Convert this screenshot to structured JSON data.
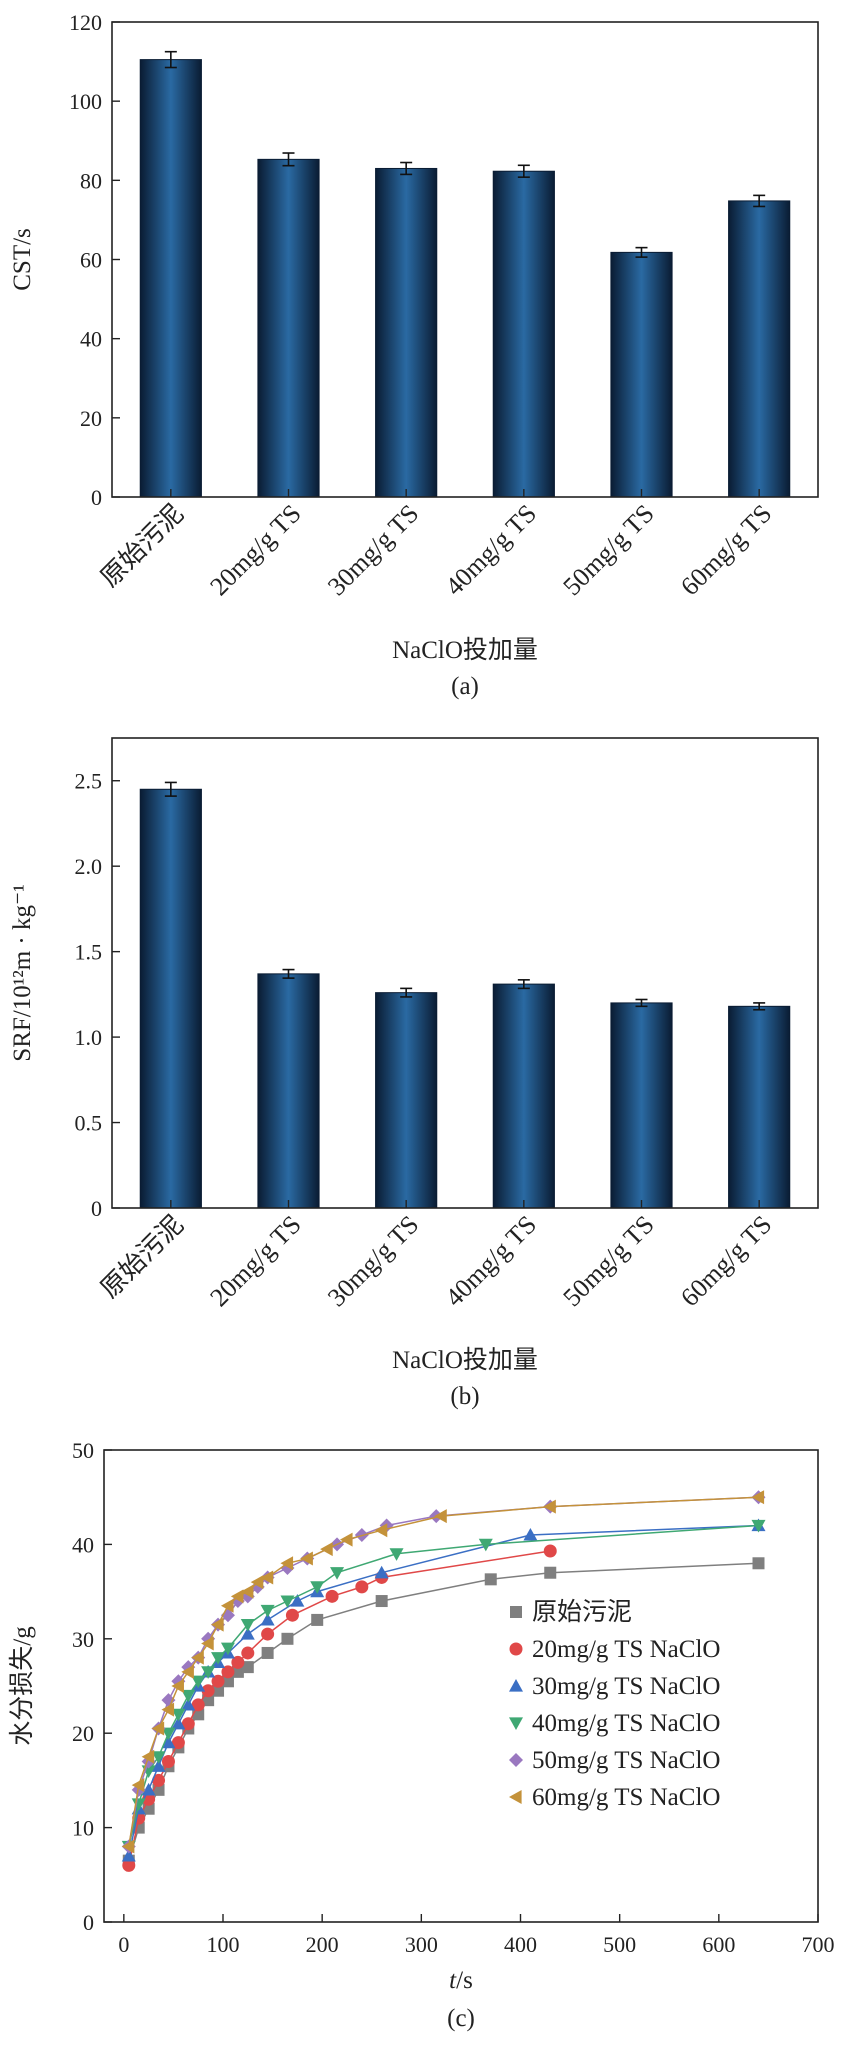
{
  "chart_data": [
    {
      "panel": "(a)",
      "type": "bar",
      "categories": [
        "原始污泥",
        "20mg/g TS",
        "30mg/g TS",
        "40mg/g TS",
        "50mg/g TS",
        "60mg/g TS"
      ],
      "values": [
        110.5,
        85.3,
        83.0,
        82.3,
        61.8,
        74.8
      ],
      "errors": [
        2.0,
        1.6,
        1.5,
        1.5,
        1.2,
        1.4
      ],
      "xlabel": "NaClO投加量",
      "ylabel": "CST/s",
      "ylim": [
        0,
        120
      ],
      "yticks": [
        0,
        20,
        40,
        60,
        80,
        100,
        120
      ],
      "bar_color": "#2a6aa3"
    },
    {
      "panel": "(b)",
      "type": "bar",
      "categories": [
        "原始污泥",
        "20mg/g TS",
        "30mg/g TS",
        "40mg/g TS",
        "50mg/g TS",
        "60mg/g TS"
      ],
      "values": [
        2.45,
        1.37,
        1.26,
        1.31,
        1.2,
        1.18
      ],
      "errors": [
        0.04,
        0.025,
        0.025,
        0.025,
        0.02,
        0.02
      ],
      "xlabel": "NaClO投加量",
      "ylabel": "SRF/10¹²m · kg⁻¹",
      "ylim": [
        0,
        2.75
      ],
      "yticks": [
        "0",
        "0.5",
        "1.0",
        "1.5",
        "2.0",
        "2.5"
      ],
      "bar_color": "#2a6aa3"
    },
    {
      "panel": "(c)",
      "type": "scatter",
      "xlabel": "t/s",
      "ylabel": "水分损失/g",
      "xlim": [
        -20,
        700
      ],
      "ylim": [
        0,
        50
      ],
      "xticks": [
        0,
        100,
        200,
        300,
        400,
        500,
        600,
        700
      ],
      "yticks": [
        0,
        10,
        20,
        30,
        40,
        50
      ],
      "legend_position": "center-right",
      "series": [
        {
          "name": "原始污泥",
          "marker": "square",
          "color": "#7f7f7f",
          "x": [
            5,
            15,
            25,
            35,
            45,
            55,
            65,
            75,
            85,
            95,
            105,
            115,
            125,
            145,
            165,
            195,
            260,
            370,
            430,
            640
          ],
          "y": [
            6.5,
            10,
            12,
            14,
            16.5,
            18.5,
            20.5,
            22,
            23.5,
            24.5,
            25.5,
            26.5,
            27,
            28.5,
            30,
            32,
            34,
            36.3,
            37,
            38
          ]
        },
        {
          "name": "20mg/g TS NaClO",
          "marker": "circle",
          "color": "#e04848",
          "x": [
            5,
            15,
            25,
            35,
            45,
            55,
            65,
            75,
            85,
            95,
            105,
            115,
            125,
            145,
            170,
            210,
            240,
            260,
            430
          ],
          "y": [
            6,
            11,
            13,
            15,
            17,
            19,
            21,
            23,
            24.5,
            25.5,
            26.5,
            27.5,
            28.5,
            30.5,
            32.5,
            34.5,
            35.5,
            36.5,
            39.3
          ]
        },
        {
          "name": "30mg/g TS NaClO",
          "marker": "triangle-up",
          "color": "#3b6fc4",
          "x": [
            5,
            15,
            25,
            35,
            45,
            55,
            65,
            75,
            85,
            95,
            105,
            125,
            145,
            175,
            195,
            260,
            410,
            640
          ],
          "y": [
            7,
            12,
            14,
            16.5,
            19,
            21,
            23,
            25,
            26.5,
            27.5,
            28.5,
            30.5,
            32,
            34,
            35,
            37,
            41,
            42
          ]
        },
        {
          "name": "40mg/g TS NaClO",
          "marker": "triangle-down",
          "color": "#3fa873",
          "x": [
            5,
            15,
            25,
            35,
            45,
            55,
            65,
            75,
            85,
            95,
            105,
            125,
            145,
            165,
            195,
            215,
            275,
            365,
            640
          ],
          "y": [
            8,
            12.5,
            16,
            17.5,
            20,
            22,
            24,
            25.5,
            26.5,
            28,
            29,
            31.5,
            33,
            34,
            35.5,
            37,
            39,
            40,
            42
          ]
        },
        {
          "name": "50mg/g TS NaClO",
          "marker": "diamond",
          "color": "#9a78c0",
          "x": [
            5,
            15,
            25,
            35,
            45,
            55,
            65,
            75,
            85,
            95,
            105,
            115,
            125,
            135,
            145,
            165,
            185,
            215,
            240,
            265,
            315,
            430,
            640
          ],
          "y": [
            8,
            14,
            17,
            20.5,
            23.5,
            25.5,
            27,
            28,
            30,
            31.5,
            32.5,
            34,
            34.5,
            35.5,
            36.5,
            37.5,
            38.5,
            40,
            41,
            42,
            43,
            44,
            45
          ]
        },
        {
          "name": "60mg/g TS NaClO",
          "marker": "triangle-left",
          "color": "#c4923a",
          "x": [
            5,
            15,
            25,
            35,
            45,
            55,
            65,
            75,
            85,
            95,
            105,
            115,
            125,
            135,
            145,
            165,
            185,
            205,
            225,
            260,
            320,
            430,
            640
          ],
          "y": [
            8,
            14.5,
            17.5,
            20.5,
            22.5,
            25,
            26.5,
            28,
            29.5,
            31.5,
            33.5,
            34.5,
            35,
            36,
            36.5,
            38,
            38.5,
            39.5,
            40.5,
            41.5,
            43,
            44,
            45
          ]
        }
      ]
    }
  ]
}
